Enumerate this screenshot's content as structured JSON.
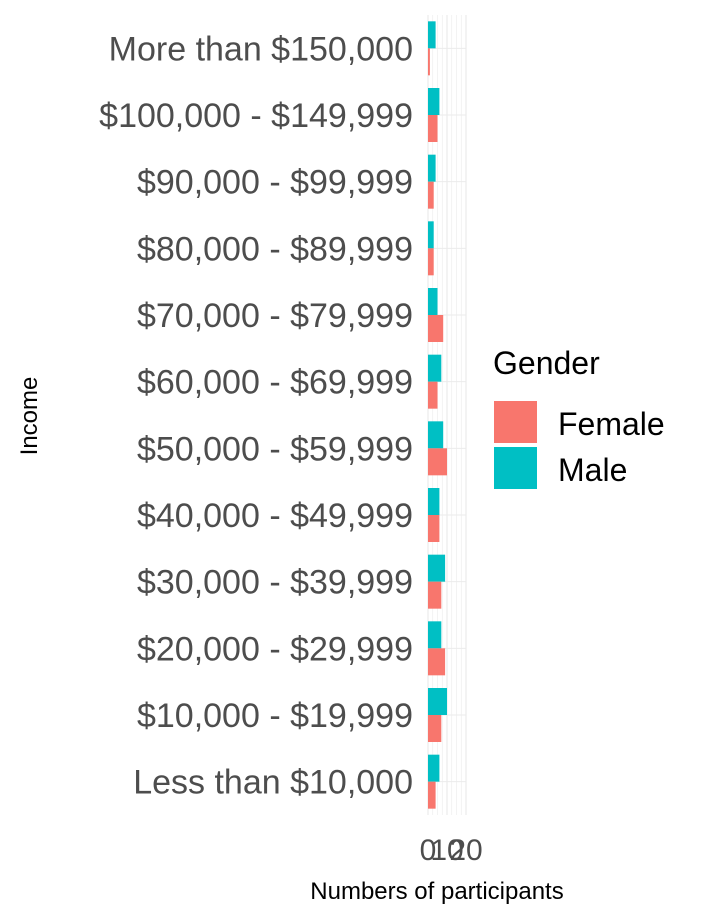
{
  "chart_data": {
    "type": "bar",
    "orientation": "horizontal",
    "grouping": "dodge",
    "categories": [
      "More than $150,000",
      "$100,000 - $149,999",
      "$90,000 - $99,999",
      "$80,000 - $89,999",
      "$70,000 - $79,999",
      "$60,000 - $69,999",
      "$50,000 - $59,999",
      "$40,000 - $49,999",
      "$30,000 - $39,999",
      "$20,000 - $29,999",
      "$10,000 - $19,999",
      "Less than $10,000"
    ],
    "series": [
      {
        "name": "Female",
        "color": "#F8766D",
        "values": [
          1,
          5,
          3,
          3,
          8,
          5,
          10,
          6,
          7,
          9,
          7,
          4
        ]
      },
      {
        "name": "Male",
        "color": "#00BFC4",
        "values": [
          4,
          6,
          4,
          3,
          5,
          7,
          8,
          6,
          9,
          7,
          10,
          6
        ]
      }
    ],
    "xlabel": "Numbers of participants",
    "ylabel": "Income",
    "xlim": [
      0,
      20
    ],
    "x_ticks": [
      "0",
      "10",
      "20"
    ],
    "legend": {
      "title": "Gender",
      "position": "right"
    },
    "grid": true
  }
}
